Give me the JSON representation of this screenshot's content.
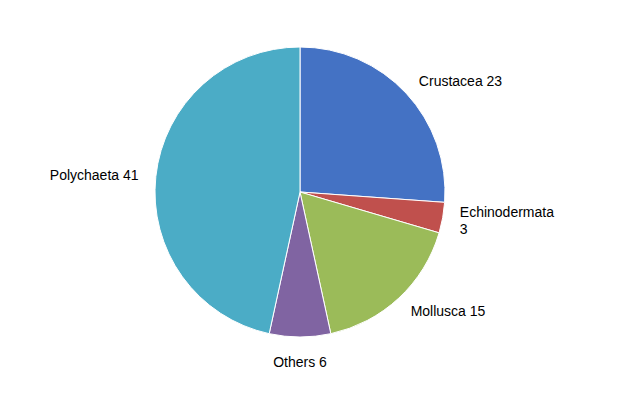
{
  "chart_data": {
    "type": "pie",
    "categories": [
      "Crustacea 23",
      "Echinodermata\n3",
      "Mollusca 15",
      "Others 6",
      "Polychaeta 41"
    ],
    "values": [
      23,
      3,
      15,
      6,
      41
    ],
    "colors": [
      "#4472C4",
      "#C0504D",
      "#9BBB59",
      "#8064A2",
      "#4BACC6"
    ]
  }
}
